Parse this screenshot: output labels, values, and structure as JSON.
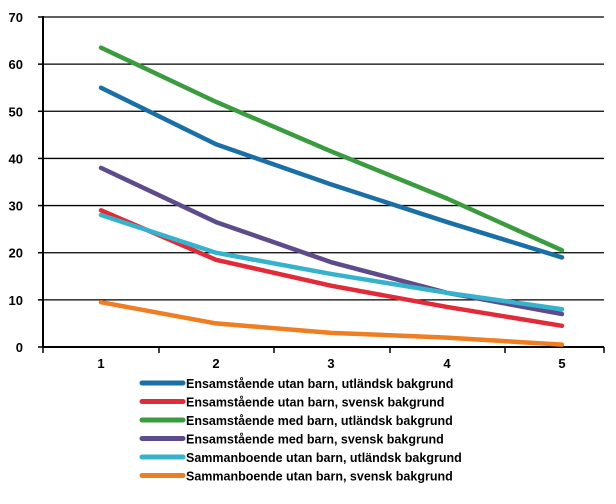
{
  "chart_data": {
    "type": "line",
    "title": "",
    "xlabel": "",
    "ylabel": "",
    "x": [
      1,
      2,
      3,
      4,
      5
    ],
    "ylim": [
      0,
      70
    ],
    "yticks": [
      0,
      10,
      20,
      30,
      40,
      50,
      60,
      70
    ],
    "xtick_labels": [
      "1",
      "2",
      "3",
      "4",
      "5"
    ],
    "ytick_labels": [
      "0",
      "10",
      "20",
      "30",
      "40",
      "50",
      "60",
      "70"
    ],
    "grid": "horizontal",
    "legend_position": "bottom",
    "series": [
      {
        "name": "Ensamstående utan barn, utländsk bakgrund",
        "color": "#1a6fa6",
        "values": [
          55,
          43,
          34.5,
          26.5,
          19
        ]
      },
      {
        "name": "Ensamstående utan barn, svensk bakgrund",
        "color": "#e12b38",
        "values": [
          29,
          18.5,
          13,
          8.5,
          4.5
        ]
      },
      {
        "name": "Ensamstående med barn, utländsk bakgrund",
        "color": "#3a9c3f",
        "values": [
          63.5,
          52,
          41.5,
          31.5,
          20.5
        ]
      },
      {
        "name": "Ensamstående med barn, svensk bakgrund",
        "color": "#5e4b8b",
        "values": [
          38,
          26.5,
          18,
          11.5,
          7
        ]
      },
      {
        "name": "Sammanboende utan barn, utländsk bakgrund",
        "color": "#35b3cc",
        "values": [
          28,
          20,
          15.5,
          11.5,
          8
        ]
      },
      {
        "name": "Sammanboende utan barn, svensk bakgrund",
        "color": "#ef7d22",
        "values": [
          9.5,
          5,
          3,
          2,
          0.5
        ]
      }
    ]
  }
}
